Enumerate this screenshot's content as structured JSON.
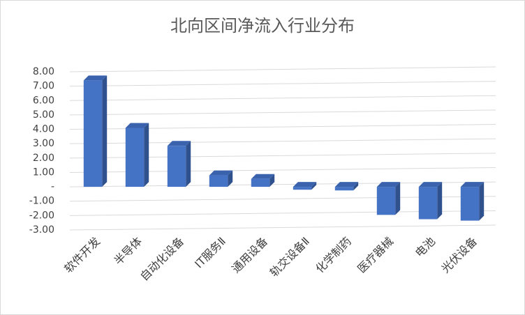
{
  "chart_data": {
    "type": "bar",
    "title": "北向区间净流入行业分布",
    "categories": [
      "软件开发",
      "半导体",
      "自动化设备",
      "IT服务Ⅱ",
      "通用设备",
      "轨交设备Ⅱ",
      "化学制药",
      "医疗器械",
      "电池",
      "光伏设备"
    ],
    "values": [
      7.4,
      4.1,
      2.85,
      0.8,
      0.55,
      -0.2,
      -0.25,
      -1.95,
      -2.25,
      -2.35
    ],
    "color": "#4472c4",
    "ylim": [
      -3,
      8
    ],
    "yticks": [
      {
        "value": 8,
        "label": "8.00"
      },
      {
        "value": 7,
        "label": "7.00"
      },
      {
        "value": 6,
        "label": "6.00"
      },
      {
        "value": 5,
        "label": "5.00"
      },
      {
        "value": 4,
        "label": "4.00"
      },
      {
        "value": 3,
        "label": "3.00"
      },
      {
        "value": 2,
        "label": "2.00"
      },
      {
        "value": 1,
        "label": "1.00"
      },
      {
        "value": 0,
        "label": "-"
      },
      {
        "value": -1,
        "label": "-1.00"
      },
      {
        "value": -2,
        "label": "-2.00"
      },
      {
        "value": -3,
        "label": "-3.00"
      }
    ],
    "grid": true
  }
}
